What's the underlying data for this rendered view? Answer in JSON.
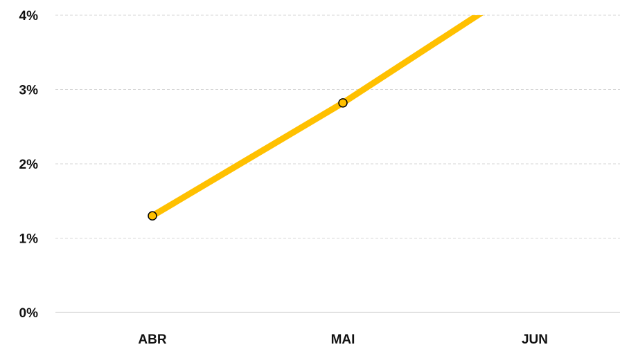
{
  "chart_data": {
    "type": "line",
    "categories": [
      "ABR",
      "MAI",
      "JUN"
    ],
    "series": [
      {
        "values": [
          1.3,
          2.82,
          4.5
        ],
        "color": "#FFC000"
      }
    ],
    "yticks": [
      "0%",
      "1%",
      "2%",
      "3%",
      "4%"
    ],
    "ylim": [
      0,
      4
    ],
    "y_unit": "%",
    "grid": true,
    "grid_style": "dashed",
    "legend": "none",
    "marker_fill": "#FFC000",
    "marker_stroke": "#000000"
  }
}
